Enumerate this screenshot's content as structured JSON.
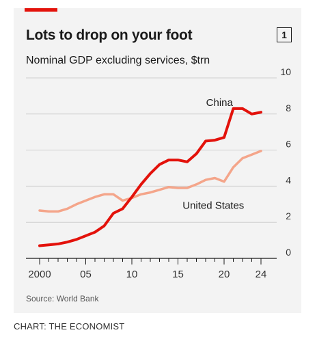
{
  "header": {
    "title": "Lots to drop on your foot",
    "subtitle": "Nominal GDP excluding services, $trn",
    "badge": "1"
  },
  "footer": {
    "source": "Source: World Bank",
    "credit": "CHART: THE ECONOMIST"
  },
  "colors": {
    "accent": "#e3120b",
    "china": "#e3120b",
    "united_states": "#f4a58a",
    "grid": "#cfcfcf",
    "panel": "#f3f3f3"
  },
  "chart_data": {
    "type": "line",
    "title": "Lots to drop on your foot",
    "subtitle": "Nominal GDP excluding services, $trn",
    "xlim": [
      2000,
      2024
    ],
    "ylim": [
      0,
      10
    ],
    "yticks": [
      0,
      2,
      4,
      6,
      8,
      10
    ],
    "ytick_labels": [
      "0",
      "2",
      "4",
      "6",
      "8",
      "10"
    ],
    "xticks": [
      2000,
      2005,
      2010,
      2015,
      2020,
      2024
    ],
    "xtick_labels": [
      "2000",
      "05",
      "10",
      "15",
      "20",
      "24"
    ],
    "grid": true,
    "y_axis_position": "right",
    "x": [
      2000,
      2001,
      2002,
      2003,
      2004,
      2005,
      2006,
      2007,
      2008,
      2009,
      2010,
      2011,
      2012,
      2013,
      2014,
      2015,
      2016,
      2017,
      2018,
      2019,
      2020,
      2021,
      2022,
      2023,
      2024
    ],
    "series": [
      {
        "name": "China",
        "color": "#e3120b",
        "values": [
          0.7,
          0.75,
          0.8,
          0.9,
          1.05,
          1.25,
          1.45,
          1.8,
          2.5,
          2.75,
          3.4,
          4.1,
          4.7,
          5.2,
          5.45,
          5.45,
          5.35,
          5.8,
          6.5,
          6.55,
          6.7,
          8.3,
          8.3,
          8.0,
          8.1
        ]
      },
      {
        "name": "United States",
        "color": "#f4a58a",
        "values": [
          2.65,
          2.6,
          2.6,
          2.75,
          3.0,
          3.2,
          3.4,
          3.55,
          3.55,
          3.2,
          3.35,
          3.55,
          3.65,
          3.8,
          3.95,
          3.9,
          3.9,
          4.1,
          4.35,
          4.45,
          4.25,
          5.05,
          5.55,
          5.75,
          5.95
        ]
      }
    ],
    "annotations": [
      {
        "text": "China",
        "series": "China"
      },
      {
        "text": "United States",
        "series": "United States"
      }
    ]
  }
}
